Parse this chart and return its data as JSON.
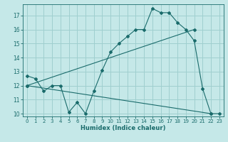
{
  "xlabel": "Humidex (Indice chaleur)",
  "ylabel": "",
  "bg_color": "#c5e8e8",
  "grid_color": "#9fcfcf",
  "line_color": "#1a6b6b",
  "xlim": [
    -0.5,
    23.5
  ],
  "ylim": [
    9.8,
    17.8
  ],
  "yticks": [
    10,
    11,
    12,
    13,
    14,
    15,
    16,
    17
  ],
  "xticks": [
    0,
    1,
    2,
    3,
    4,
    5,
    6,
    7,
    8,
    9,
    10,
    11,
    12,
    13,
    14,
    15,
    16,
    17,
    18,
    19,
    20,
    21,
    22,
    23
  ],
  "curve1_x": [
    0,
    1,
    2,
    3,
    4,
    5,
    6,
    7,
    8,
    9,
    10,
    11,
    12,
    13,
    14,
    15,
    16,
    17,
    18,
    19,
    20,
    21,
    22,
    23
  ],
  "curve1_y": [
    12.7,
    12.5,
    11.6,
    12.0,
    12.0,
    10.1,
    10.8,
    10.0,
    11.6,
    13.1,
    14.4,
    15.0,
    15.5,
    16.0,
    16.0,
    17.5,
    17.2,
    17.2,
    16.5,
    16.0,
    15.2,
    11.8,
    10.0,
    10.0
  ],
  "curve2_x": [
    0,
    20
  ],
  "curve2_y": [
    12.0,
    16.0
  ],
  "curve3_x": [
    0,
    22
  ],
  "curve3_y": [
    12.0,
    10.0
  ]
}
